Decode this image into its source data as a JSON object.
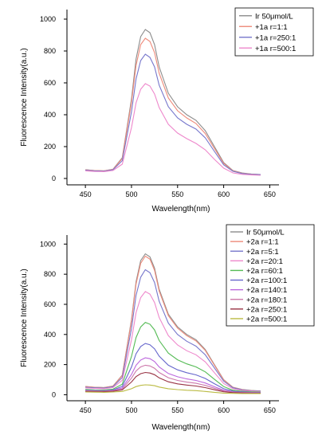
{
  "chart_data": [
    {
      "type": "line",
      "title": "",
      "xlabel": "Wavelength(nm)",
      "ylabel": "Fluorescence Intensity(a.u.)",
      "xlim": [
        430,
        660
      ],
      "ylim": [
        -40,
        1060
      ],
      "xticks": [
        450,
        500,
        550,
        600,
        650
      ],
      "yticks": [
        0,
        200,
        400,
        600,
        800,
        1000
      ],
      "grid": false,
      "legend_position": "top-right",
      "x": [
        450,
        460,
        470,
        480,
        490,
        500,
        505,
        510,
        515,
        520,
        525,
        530,
        540,
        550,
        560,
        570,
        580,
        590,
        600,
        610,
        620,
        630,
        640
      ],
      "series": [
        {
          "name": "Ir 50μmol/L",
          "color": "#8c8c8c",
          "values": [
            55,
            50,
            48,
            58,
            130,
            500,
            750,
            890,
            935,
            915,
            840,
            700,
            535,
            450,
            400,
            365,
            300,
            200,
            100,
            50,
            35,
            28,
            25
          ]
        },
        {
          "name": "+1a r=1:1",
          "color": "#ee8a7a",
          "values": [
            55,
            50,
            48,
            57,
            125,
            480,
            710,
            840,
            880,
            860,
            790,
            660,
            505,
            425,
            380,
            345,
            282,
            188,
            95,
            48,
            33,
            27,
            24
          ]
        },
        {
          "name": "+1a r=250:1",
          "color": "#7777cc",
          "values": [
            52,
            48,
            46,
            55,
            112,
            420,
            625,
            740,
            780,
            760,
            700,
            585,
            450,
            380,
            340,
            310,
            255,
            170,
            86,
            45,
            31,
            26,
            24
          ]
        },
        {
          "name": "+1a r=500:1",
          "color": "#ee88cc",
          "values": [
            48,
            44,
            43,
            50,
            90,
            320,
            475,
            560,
            595,
            580,
            530,
            445,
            340,
            285,
            250,
            220,
            180,
            120,
            65,
            35,
            26,
            22,
            20
          ]
        }
      ]
    },
    {
      "type": "line",
      "title": "",
      "xlabel": "Wavelength(nm)",
      "ylabel": "Fluorescence Intensity(a.u.)",
      "xlim": [
        430,
        660
      ],
      "ylim": [
        -40,
        1060
      ],
      "xticks": [
        450,
        500,
        550,
        600,
        650
      ],
      "yticks": [
        0,
        200,
        400,
        600,
        800,
        1000
      ],
      "grid": false,
      "legend_position": "top-right",
      "x": [
        450,
        460,
        470,
        480,
        490,
        500,
        505,
        510,
        515,
        520,
        525,
        530,
        540,
        550,
        560,
        570,
        580,
        590,
        600,
        610,
        620,
        630,
        640
      ],
      "series": [
        {
          "name": "Ir 50μmol/L",
          "color": "#8c8c8c",
          "values": [
            55,
            50,
            48,
            58,
            130,
            500,
            750,
            890,
            935,
            915,
            840,
            700,
            535,
            450,
            400,
            365,
            300,
            200,
            100,
            50,
            35,
            28,
            25
          ]
        },
        {
          "name": "+2a r=1:1",
          "color": "#ee8a7a",
          "values": [
            54,
            49,
            47,
            57,
            127,
            490,
            735,
            872,
            920,
            900,
            825,
            688,
            525,
            442,
            392,
            357,
            294,
            196,
            98,
            49,
            34,
            27,
            24
          ]
        },
        {
          "name": "+2a r=5:1",
          "color": "#7777cc",
          "values": [
            50,
            46,
            44,
            53,
            115,
            440,
            660,
            780,
            830,
            810,
            745,
            620,
            475,
            400,
            355,
            322,
            265,
            178,
            90,
            46,
            32,
            26,
            23
          ]
        },
        {
          "name": "+2a r=20:1",
          "color": "#ee88cc",
          "values": [
            45,
            42,
            40,
            48,
            96,
            365,
            545,
            645,
            685,
            668,
            612,
            512,
            392,
            330,
            292,
            265,
            218,
            146,
            75,
            40,
            29,
            24,
            21
          ]
        },
        {
          "name": "+2a r=60:1",
          "color": "#55bb55",
          "values": [
            35,
            32,
            31,
            37,
            70,
            255,
            380,
            450,
            480,
            468,
            430,
            360,
            276,
            232,
            205,
            185,
            152,
            102,
            54,
            30,
            23,
            19,
            17
          ]
        },
        {
          "name": "+2a r=100:1",
          "color": "#6666cc",
          "values": [
            30,
            28,
            27,
            32,
            55,
            185,
            272,
            320,
            340,
            332,
            305,
            256,
            196,
            165,
            146,
            132,
            108,
            73,
            40,
            24,
            19,
            16,
            15
          ]
        },
        {
          "name": "+2a r=140:1",
          "color": "#bb66dd",
          "values": [
            27,
            25,
            24,
            28,
            45,
            135,
            196,
            230,
            245,
            239,
            220,
            184,
            141,
            119,
            105,
            95,
            78,
            53,
            30,
            19,
            16,
            14,
            13
          ]
        },
        {
          "name": "+2a r=180:1",
          "color": "#cc77aa",
          "values": [
            25,
            23,
            22,
            26,
            38,
            110,
            158,
            185,
            196,
            191,
            176,
            148,
            113,
            95,
            84,
            76,
            62,
            43,
            25,
            17,
            14,
            13,
            12
          ]
        },
        {
          "name": "+2a r=250:1",
          "color": "#993344",
          "values": [
            22,
            21,
            20,
            23,
            32,
            85,
            120,
            140,
            148,
            144,
            133,
            112,
            86,
            72,
            64,
            58,
            47,
            33,
            20,
            14,
            12,
            11,
            10
          ]
        },
        {
          "name": "+2a r=500:1",
          "color": "#bbbb44",
          "values": [
            18,
            17,
            16,
            18,
            22,
            40,
            54,
            62,
            66,
            64,
            60,
            51,
            40,
            34,
            30,
            27,
            22,
            16,
            11,
            9,
            8,
            8,
            8
          ]
        }
      ]
    }
  ]
}
